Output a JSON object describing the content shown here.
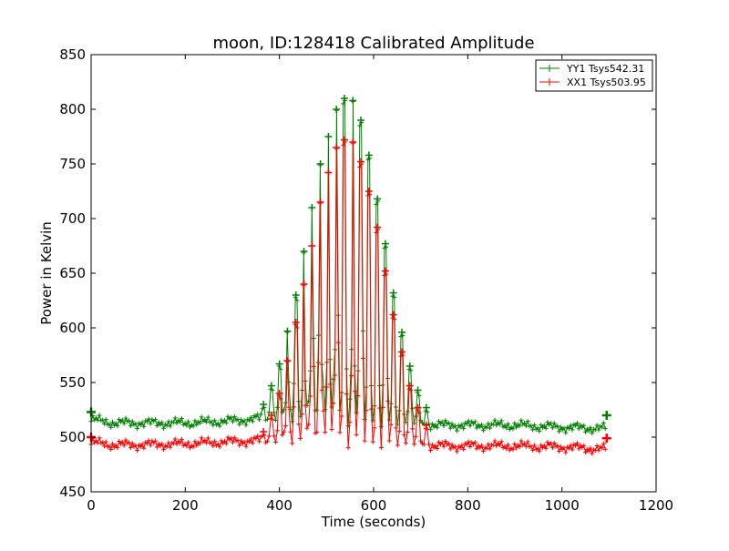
{
  "chart_data": {
    "type": "line",
    "title": "moon, ID:128418 Calibrated Amplitude",
    "xlabel": "Time (seconds)",
    "ylabel": "Power in Kelvin",
    "xlim": [
      0,
      1200
    ],
    "ylim": [
      450,
      850
    ],
    "xticks": [
      "0",
      "200",
      "400",
      "600",
      "800",
      "1000",
      "1200"
    ],
    "yticks": [
      "450",
      "500",
      "550",
      "600",
      "650",
      "700",
      "750",
      "800",
      "850"
    ],
    "grid": false,
    "legend_position": "top-right",
    "marker": "plus",
    "series": [
      {
        "name": "YY1 Tsys542.31",
        "color": "#008000",
        "baseline": [
          [
            0,
            516
          ],
          [
            50,
            513
          ],
          [
            100,
            513
          ],
          [
            200,
            513
          ],
          [
            300,
            515
          ],
          [
            360,
            517
          ],
          [
            450,
            517
          ],
          [
            550,
            515
          ],
          [
            650,
            513
          ],
          [
            750,
            511
          ],
          [
            900,
            511
          ],
          [
            1000,
            509
          ],
          [
            1090,
            508
          ]
        ],
        "peaks": [
          [
            366,
            530
          ],
          [
            383,
            547
          ],
          [
            400,
            567
          ],
          [
            417,
            597
          ],
          [
            435,
            630
          ],
          [
            452,
            670
          ],
          [
            469,
            710
          ],
          [
            487,
            750
          ],
          [
            504,
            775
          ],
          [
            521,
            800
          ],
          [
            538,
            810
          ],
          [
            556,
            808
          ],
          [
            573,
            790
          ],
          [
            590,
            758
          ],
          [
            608,
            718
          ],
          [
            625,
            677
          ],
          [
            642,
            632
          ],
          [
            660,
            596
          ],
          [
            677,
            565
          ],
          [
            694,
            543
          ],
          [
            712,
            527
          ]
        ],
        "end_points": [
          [
            0,
            523
          ],
          [
            1095,
            520
          ]
        ]
      },
      {
        "name": "XX1 Tsys503.95",
        "color": "#ff0000",
        "baseline": [
          [
            0,
            495
          ],
          [
            50,
            493
          ],
          [
            100,
            493
          ],
          [
            200,
            494
          ],
          [
            300,
            496
          ],
          [
            360,
            497
          ],
          [
            450,
            497
          ],
          [
            550,
            495
          ],
          [
            650,
            494
          ],
          [
            750,
            492
          ],
          [
            900,
            492
          ],
          [
            1000,
            491
          ],
          [
            1090,
            489
          ]
        ],
        "peaks": [
          [
            366,
            505
          ],
          [
            383,
            520
          ],
          [
            400,
            540
          ],
          [
            417,
            570
          ],
          [
            435,
            605
          ],
          [
            452,
            640
          ],
          [
            469,
            675
          ],
          [
            487,
            715
          ],
          [
            504,
            742
          ],
          [
            521,
            765
          ],
          [
            538,
            772
          ],
          [
            556,
            770
          ],
          [
            573,
            752
          ],
          [
            590,
            725
          ],
          [
            608,
            692
          ],
          [
            625,
            652
          ],
          [
            642,
            612
          ],
          [
            660,
            578
          ],
          [
            677,
            547
          ],
          [
            694,
            527
          ],
          [
            712,
            511
          ]
        ],
        "end_points": [
          [
            0,
            500
          ],
          [
            1095,
            499
          ]
        ]
      }
    ]
  }
}
